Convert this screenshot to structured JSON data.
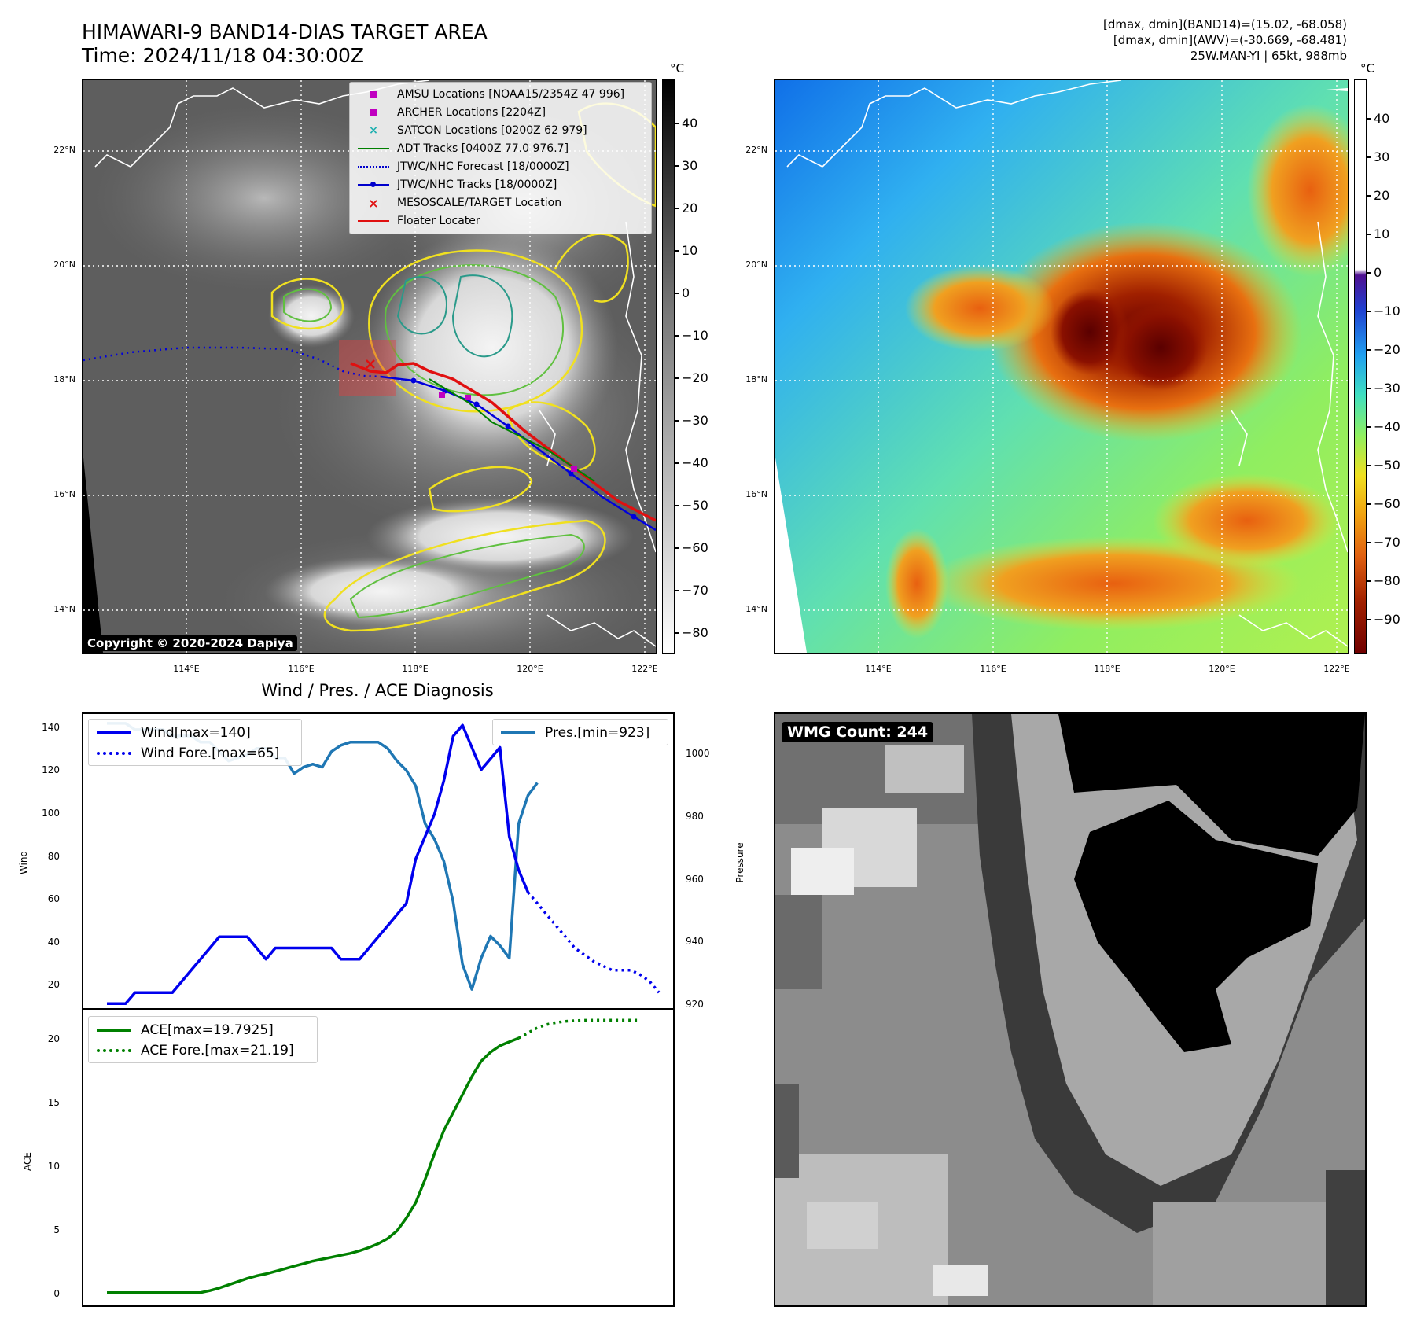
{
  "header": {
    "title_line1": "HIMAWARI-9 BAND14-DIAS TARGET AREA",
    "title_line2": "Time: 2024/11/18 04:30:00Z",
    "info_line1": "[dmax, dmin](BAND14)=(15.02, -68.058)",
    "info_line2": "[dmax, dmin](AWV)=(-30.669, -68.481)",
    "info_line3": "25W.MAN-YI | 65kt, 988mb"
  },
  "map": {
    "lat_labels": [
      "22°N",
      "20°N",
      "18°N",
      "16°N",
      "14°N"
    ],
    "lon_labels": [
      "114°E",
      "116°E",
      "118°E",
      "120°E",
      "122°E"
    ],
    "copyright": "Copyright © 2020-2024 Dapiya",
    "colors": {
      "yellow": "#f0e020",
      "green": "#60c040",
      "teal": "#2a9a8a",
      "coast": "#ffffff"
    }
  },
  "legend": {
    "items": [
      {
        "label": "AMSU Locations [NOAA15/2354Z 47 996]",
        "symbol": "square",
        "color": "#c000c0"
      },
      {
        "label": "ARCHER Locations [2204Z]",
        "symbol": "square",
        "color": "#c000c0"
      },
      {
        "label": "SATCON Locations [0200Z 62 979]",
        "symbol": "x",
        "color": "#20b0b0"
      },
      {
        "label": "ADT Tracks [0400Z 77.0 976.7]",
        "symbol": "line",
        "color": "#008000"
      },
      {
        "label": "JTWC/NHC Forecast [18/0000Z]",
        "symbol": "dotted",
        "color": "#0000cc"
      },
      {
        "label": "JTWC/NHC Tracks [18/0000Z]",
        "symbol": "line-dot",
        "color": "#0000cc"
      },
      {
        "label": "MESOSCALE/TARGET Location",
        "symbol": "x",
        "color": "#e01010"
      },
      {
        "label": "Floater Locater",
        "symbol": "line",
        "color": "#e01010"
      }
    ]
  },
  "colorbar1": {
    "unit": "°C",
    "ticks": [
      "40",
      "30",
      "20",
      "10",
      "0",
      "−10",
      "−20",
      "−30",
      "−40",
      "−50",
      "−60",
      "−70",
      "−80"
    ]
  },
  "colorbar2": {
    "unit": "°C",
    "ticks": [
      "40",
      "30",
      "20",
      "10",
      "0",
      "−10",
      "−20",
      "−30",
      "−40",
      "−50",
      "−60",
      "−70",
      "−80",
      "−90"
    ]
  },
  "wmg": {
    "label": "WMG Count: 244"
  },
  "diagnosis": {
    "title": "Wind / Pres. / ACE Diagnosis",
    "wind_axis_label": "Wind",
    "pressure_axis_label": "Pressure",
    "ace_axis_label": "ACE",
    "wind_ticks": [
      "140",
      "120",
      "100",
      "80",
      "60",
      "40",
      "20"
    ],
    "pressure_ticks": [
      "1000",
      "980",
      "960",
      "940",
      "920"
    ],
    "ace_ticks": [
      "20",
      "15",
      "10",
      "5",
      "0"
    ],
    "legend_wind": "Wind[max=140]",
    "legend_wind_fore": "Wind Fore.[max=65]",
    "legend_pres": "Pres.[min=923]",
    "legend_ace": "ACE[max=19.7925]",
    "legend_ace_fore": "ACE Fore.[max=21.19]"
  },
  "chart_data": [
    {
      "type": "line",
      "title": "Wind / Pres. / ACE Diagnosis",
      "ylabel": "Wind",
      "ylim": [
        13,
        145
      ],
      "series": [
        {
          "name": "Wind[max=140]",
          "color": "#0000ee",
          "style": "solid",
          "values": [
            15,
            15,
            15,
            20,
            20,
            20,
            20,
            20,
            25,
            30,
            35,
            40,
            45,
            45,
            45,
            45,
            40,
            35,
            40,
            40,
            40,
            40,
            40,
            40,
            40,
            35,
            35,
            35,
            40,
            45,
            50,
            55,
            60,
            80,
            90,
            100,
            115,
            135,
            140,
            130,
            120,
            125,
            130,
            90,
            75,
            65
          ]
        },
        {
          "name": "Wind Fore.[max=65]",
          "color": "#0000ee",
          "style": "dotted",
          "values": [
            65,
            60,
            55,
            50,
            45,
            40,
            37,
            34,
            32,
            30,
            30,
            30,
            28,
            25,
            20
          ]
        }
      ]
    },
    {
      "type": "line",
      "ylabel": "Pressure",
      "ylim": [
        917,
        1011
      ],
      "series": [
        {
          "name": "Pres.[min=923]",
          "color": "#1f77b4",
          "style": "solid",
          "values": [
            1008,
            1008,
            1008,
            1006,
            1006,
            1006,
            1006,
            1004,
            1004,
            1004,
            1002,
            1002,
            999,
            996,
            997,
            998,
            1000,
            1000,
            997,
            997,
            992,
            994,
            995,
            994,
            999,
            1001,
            1002,
            1002,
            1002,
            1002,
            1000,
            996,
            993,
            988,
            976,
            971,
            964,
            951,
            931,
            923,
            933,
            940,
            937,
            933,
            976,
            985,
            989
          ]
        }
      ]
    },
    {
      "type": "line",
      "ylabel": "ACE",
      "ylim": [
        -1,
        22
      ],
      "series": [
        {
          "name": "ACE[max=19.7925]",
          "color": "#008000",
          "style": "solid",
          "values": [
            0,
            0,
            0,
            0,
            0,
            0,
            0,
            0,
            0,
            0,
            0,
            0.15,
            0.35,
            0.6,
            0.85,
            1.1,
            1.3,
            1.45,
            1.65,
            1.85,
            2.05,
            2.25,
            2.45,
            2.6,
            2.75,
            2.9,
            3.05,
            3.25,
            3.5,
            3.8,
            4.2,
            4.8,
            5.8,
            7.0,
            8.8,
            10.8,
            12.6,
            14.0,
            15.4,
            16.8,
            18.0,
            18.7,
            19.2,
            19.5,
            19.7925
          ]
        },
        {
          "name": "ACE Fore.[max=21.19]",
          "color": "#008000",
          "style": "dotted",
          "values": [
            19.7925,
            20.2,
            20.6,
            20.85,
            21.0,
            21.1,
            21.15,
            21.18,
            21.19,
            21.19,
            21.19,
            21.19,
            21.19,
            21.19
          ]
        }
      ]
    }
  ]
}
